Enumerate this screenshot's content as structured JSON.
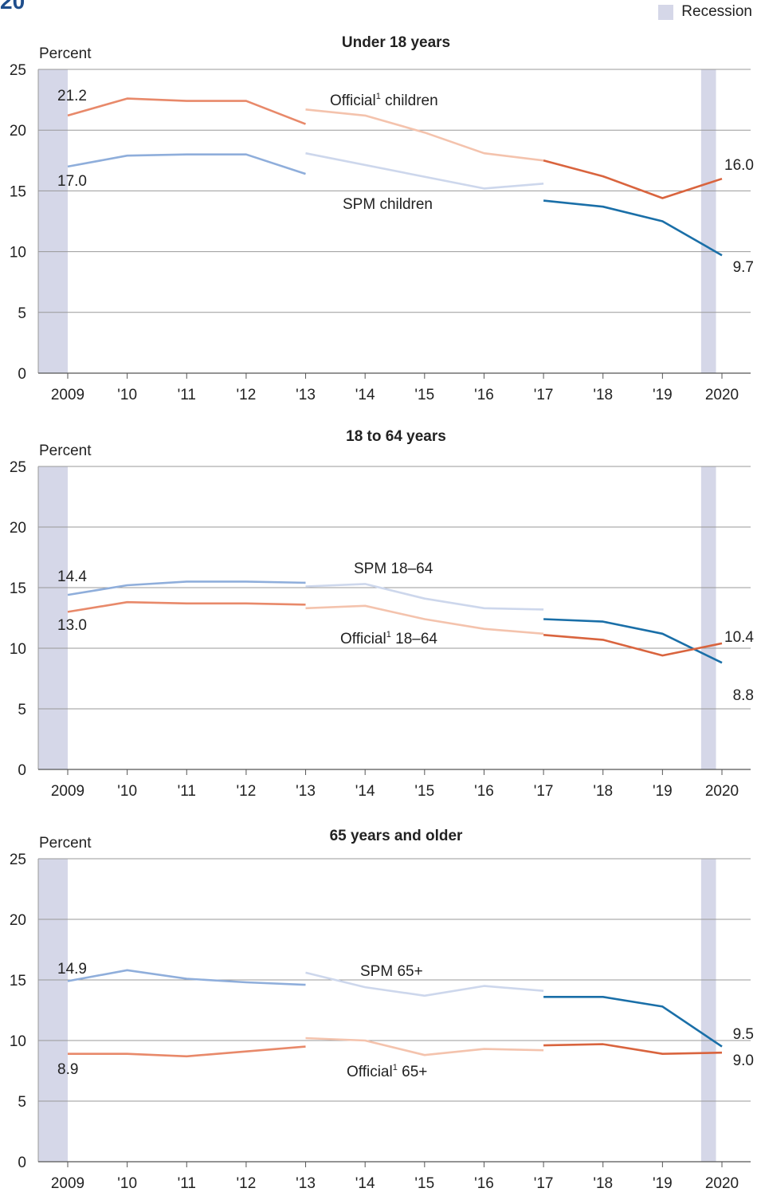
{
  "header": {
    "title_fragment": "20",
    "legend_label": "Recession",
    "recession_color": "#d5d7e8"
  },
  "colors": {
    "official_dark": "#d9643e",
    "official_light": "#f4c3ad",
    "official_mid": "#e8896a",
    "spm_dark": "#1a6fa8",
    "spm_light": "#cdd7ec",
    "spm_mid": "#8faedb",
    "grid": "#999999",
    "text": "#222222"
  },
  "chart_data": [
    {
      "type": "line",
      "title": "Under 18 years",
      "ylabel": "Percent",
      "ylim": [
        0,
        25
      ],
      "yticks": [
        "0",
        "5",
        "10",
        "15",
        "20",
        "25"
      ],
      "xlim": [
        2009,
        2020.5
      ],
      "x_tick_values": [
        2009,
        2010,
        2011,
        2012,
        2013,
        2014,
        2015,
        2016,
        2017,
        2018,
        2019,
        2020
      ],
      "x_tick_labels": [
        "2009",
        "'10",
        "'11",
        "'12",
        "'13",
        "'14",
        "'15",
        "'16",
        "'17",
        "'18",
        "'19",
        "2020"
      ],
      "recessions": [
        [
          2008.5,
          2009.0
        ],
        [
          2019.65,
          2019.9
        ]
      ],
      "series": [
        {
          "name": "Official children",
          "color_role": "official",
          "segments": [
            {
              "shade": "mid",
              "points": [
                [
                  2009,
                  21.2
                ],
                [
                  2010,
                  22.6
                ],
                [
                  2011,
                  22.4
                ],
                [
                  2012,
                  22.4
                ],
                [
                  2013,
                  20.5
                ]
              ]
            },
            {
              "shade": "light",
              "points": [
                [
                  2013,
                  21.7
                ],
                [
                  2014,
                  21.2
                ],
                [
                  2015,
                  19.8
                ],
                [
                  2016,
                  18.1
                ],
                [
                  2017,
                  17.5
                ]
              ]
            },
            {
              "shade": "dark",
              "points": [
                [
                  2017,
                  17.5
                ],
                [
                  2018,
                  16.2
                ],
                [
                  2019,
                  14.4
                ],
                [
                  2020,
                  16.0
                ]
              ]
            }
          ]
        },
        {
          "name": "SPM children",
          "color_role": "spm",
          "segments": [
            {
              "shade": "mid",
              "points": [
                [
                  2009,
                  17.0
                ],
                [
                  2010,
                  17.9
                ],
                [
                  2011,
                  18.0
                ],
                [
                  2012,
                  18.0
                ],
                [
                  2013,
                  16.4
                ]
              ]
            },
            {
              "shade": "light",
              "points": [
                [
                  2013,
                  18.1
                ],
                [
                  2016,
                  15.2
                ],
                [
                  2017,
                  15.6
                ]
              ]
            },
            {
              "shade": "dark",
              "points": [
                [
                  2017,
                  14.2
                ],
                [
                  2018,
                  13.7
                ],
                [
                  2019,
                  12.5
                ],
                [
                  2020,
                  9.7
                ]
              ]
            }
          ]
        }
      ],
      "value_labels": [
        "21.2",
        "17.0",
        "16.0",
        "9.7"
      ],
      "series_labels": [
        {
          "main": "Official",
          "sup": "1",
          "rest": " children"
        },
        {
          "main": "SPM children",
          "sup": "",
          "rest": ""
        }
      ]
    },
    {
      "type": "line",
      "title": "18 to 64 years",
      "ylabel": "Percent",
      "ylim": [
        0,
        25
      ],
      "yticks": [
        "0",
        "5",
        "10",
        "15",
        "20",
        "25"
      ],
      "xlim": [
        2009,
        2020.5
      ],
      "x_tick_values": [
        2009,
        2010,
        2011,
        2012,
        2013,
        2014,
        2015,
        2016,
        2017,
        2018,
        2019,
        2020
      ],
      "x_tick_labels": [
        "2009",
        "'10",
        "'11",
        "'12",
        "'13",
        "'14",
        "'15",
        "'16",
        "'17",
        "'18",
        "'19",
        "2020"
      ],
      "recessions": [
        [
          2008.5,
          2009.0
        ],
        [
          2019.65,
          2019.9
        ]
      ],
      "series": [
        {
          "name": "SPM 18–64",
          "color_role": "spm",
          "segments": [
            {
              "shade": "mid",
              "points": [
                [
                  2009,
                  14.4
                ],
                [
                  2010,
                  15.2
                ],
                [
                  2011,
                  15.5
                ],
                [
                  2012,
                  15.5
                ],
                [
                  2013,
                  15.4
                ]
              ]
            },
            {
              "shade": "light",
              "points": [
                [
                  2013,
                  15.1
                ],
                [
                  2014,
                  15.3
                ],
                [
                  2015,
                  14.1
                ],
                [
                  2016,
                  13.3
                ],
                [
                  2017,
                  13.2
                ]
              ]
            },
            {
              "shade": "dark",
              "points": [
                [
                  2017,
                  12.4
                ],
                [
                  2018,
                  12.2
                ],
                [
                  2019,
                  11.2
                ],
                [
                  2020,
                  8.8
                ]
              ]
            }
          ]
        },
        {
          "name": "Official 18–64",
          "color_role": "official",
          "segments": [
            {
              "shade": "mid",
              "points": [
                [
                  2009,
                  13.0
                ],
                [
                  2010,
                  13.8
                ],
                [
                  2011,
                  13.7
                ],
                [
                  2012,
                  13.7
                ],
                [
                  2013,
                  13.6
                ]
              ]
            },
            {
              "shade": "light",
              "points": [
                [
                  2013,
                  13.3
                ],
                [
                  2014,
                  13.5
                ],
                [
                  2015,
                  12.4
                ],
                [
                  2016,
                  11.6
                ],
                [
                  2017,
                  11.2
                ]
              ]
            },
            {
              "shade": "dark",
              "points": [
                [
                  2017,
                  11.1
                ],
                [
                  2018,
                  10.7
                ],
                [
                  2019,
                  9.4
                ],
                [
                  2020,
                  10.4
                ]
              ]
            }
          ]
        }
      ],
      "value_labels": [
        "14.4",
        "13.0",
        "10.4",
        "8.8"
      ],
      "series_labels": [
        {
          "main": "SPM 18–64",
          "sup": "",
          "rest": ""
        },
        {
          "main": "Official",
          "sup": "1",
          "rest": " 18–64"
        }
      ]
    },
    {
      "type": "line",
      "title": "65 years and older",
      "ylabel": "Percent",
      "ylim": [
        0,
        25
      ],
      "yticks": [
        "0",
        "5",
        "10",
        "15",
        "20",
        "25"
      ],
      "xlim": [
        2009,
        2020.5
      ],
      "x_tick_values": [
        2009,
        2010,
        2011,
        2012,
        2013,
        2014,
        2015,
        2016,
        2017,
        2018,
        2019,
        2020
      ],
      "x_tick_labels": [
        "2009",
        "'10",
        "'11",
        "'12",
        "'13",
        "'14",
        "'15",
        "'16",
        "'17",
        "'18",
        "'19",
        "2020"
      ],
      "recessions": [
        [
          2008.5,
          2009.0
        ],
        [
          2019.65,
          2019.9
        ]
      ],
      "series": [
        {
          "name": "SPM 65+",
          "color_role": "spm",
          "segments": [
            {
              "shade": "mid",
              "points": [
                [
                  2009,
                  14.9
                ],
                [
                  2010,
                  15.8
                ],
                [
                  2011,
                  15.1
                ],
                [
                  2012,
                  14.8
                ],
                [
                  2013,
                  14.6
                ]
              ]
            },
            {
              "shade": "light",
              "points": [
                [
                  2013,
                  15.6
                ],
                [
                  2014,
                  14.4
                ],
                [
                  2015,
                  13.7
                ],
                [
                  2016,
                  14.5
                ],
                [
                  2017,
                  14.1
                ]
              ]
            },
            {
              "shade": "dark",
              "points": [
                [
                  2017,
                  13.6
                ],
                [
                  2018,
                  13.6
                ],
                [
                  2019,
                  12.8
                ],
                [
                  2020,
                  9.5
                ]
              ]
            }
          ]
        },
        {
          "name": "Official 65+",
          "color_role": "official",
          "segments": [
            {
              "shade": "mid",
              "points": [
                [
                  2009,
                  8.9
                ],
                [
                  2010,
                  8.9
                ],
                [
                  2011,
                  8.7
                ],
                [
                  2012,
                  9.1
                ],
                [
                  2013,
                  9.5
                ]
              ]
            },
            {
              "shade": "light",
              "points": [
                [
                  2013,
                  10.2
                ],
                [
                  2014,
                  10.0
                ],
                [
                  2015,
                  8.8
                ],
                [
                  2016,
                  9.3
                ],
                [
                  2017,
                  9.2
                ]
              ]
            },
            {
              "shade": "dark",
              "points": [
                [
                  2017,
                  9.6
                ],
                [
                  2018,
                  9.7
                ],
                [
                  2019,
                  8.9
                ],
                [
                  2020,
                  9.0
                ]
              ]
            }
          ]
        }
      ],
      "value_labels": [
        "14.9",
        "8.9",
        "9.5",
        "9.0"
      ],
      "series_labels": [
        {
          "main": "SPM 65+",
          "sup": "",
          "rest": ""
        },
        {
          "main": "Official",
          "sup": "1",
          "rest": " 65+"
        }
      ]
    }
  ]
}
